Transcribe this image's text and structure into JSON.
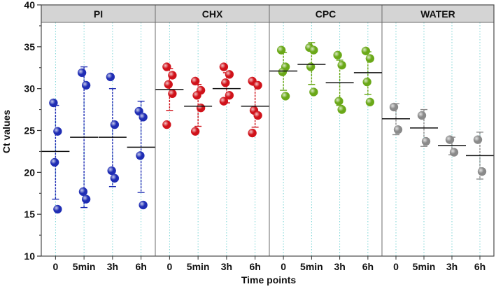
{
  "chart_data": {
    "type": "scatter",
    "ylabel": "Ct values",
    "xlabel": "Time points",
    "ylim": [
      10,
      40
    ],
    "yticks": [
      10,
      15,
      20,
      25,
      30,
      35,
      40
    ],
    "timepoints": [
      "0",
      "5min",
      "3h",
      "6h"
    ],
    "grid": "dotted vertical guides at each time point",
    "panels": [
      {
        "name": "PI",
        "color": "#1f2db4",
        "groups": [
          {
            "time": "0",
            "points": [
              28.3,
              24.9,
              21.2,
              15.6
            ],
            "mean": 22.5,
            "sd_low": 16.8,
            "sd_high": 28.0
          },
          {
            "time": "5min",
            "points": [
              31.9,
              30.4,
              17.7,
              16.8
            ],
            "mean": 24.2,
            "sd_low": 15.8,
            "sd_high": 32.6
          },
          {
            "time": "3h",
            "points": [
              31.4,
              25.7,
              20.2,
              19.3
            ],
            "mean": 24.2,
            "sd_low": 18.3,
            "sd_high": 30.0
          },
          {
            "time": "6h",
            "points": [
              27.3,
              26.6,
              22.0,
              16.1
            ],
            "mean": 23.0,
            "sd_low": 17.6,
            "sd_high": 28.5
          }
        ]
      },
      {
        "name": "CHX",
        "color": "#d0121a",
        "groups": [
          {
            "time": "0",
            "points": [
              32.6,
              31.6,
              30.5,
              29.4,
              25.7
            ],
            "mean": 29.9,
            "sd_low": 27.4,
            "sd_high": 32.4
          },
          {
            "time": "5min",
            "points": [
              30.9,
              29.8,
              29.2,
              27.7,
              24.9
            ],
            "mean": 27.9,
            "sd_low": 25.5,
            "sd_high": 30.5
          },
          {
            "time": "3h",
            "points": [
              32.6,
              31.7,
              30.7,
              29.2,
              28.5
            ],
            "mean": 30.0,
            "sd_low": 28.3,
            "sd_high": 31.9
          },
          {
            "time": "6h",
            "points": [
              30.9,
              30.4,
              27.4,
              26.8,
              24.7
            ],
            "mean": 27.9,
            "sd_low": 25.4,
            "sd_high": 30.4
          }
        ]
      },
      {
        "name": "CPC",
        "color": "#6aa818",
        "groups": [
          {
            "time": "0",
            "points": [
              34.6,
              32.6,
              32.0,
              29.1
            ],
            "mean": 32.1,
            "sd_low": 29.8,
            "sd_high": 34.3
          },
          {
            "time": "5min",
            "points": [
              34.9,
              34.6,
              32.6,
              29.6
            ],
            "mean": 32.9,
            "sd_low": 30.5,
            "sd_high": 35.5
          },
          {
            "time": "3h",
            "points": [
              34.0,
              32.8,
              28.5,
              27.5
            ],
            "mean": 30.7,
            "sd_low": 28.0,
            "sd_high": 33.4
          },
          {
            "time": "6h",
            "points": [
              34.5,
              33.6,
              30.8,
              28.4
            ],
            "mean": 31.9,
            "sd_low": 29.3,
            "sd_high": 34.4
          }
        ]
      },
      {
        "name": "WATER",
        "color": "#8a8a8a",
        "groups": [
          {
            "time": "0",
            "points": [
              27.8,
              25.1
            ],
            "mean": 26.4,
            "sd_low": 24.5,
            "sd_high": 28.2
          },
          {
            "time": "5min",
            "points": [
              26.8,
              23.7
            ],
            "mean": 25.3,
            "sd_low": 23.1,
            "sd_high": 27.5
          },
          {
            "time": "3h",
            "points": [
              23.9,
              22.4
            ],
            "mean": 23.2,
            "sd_low": 22.1,
            "sd_high": 24.2
          },
          {
            "time": "6h",
            "points": [
              23.9,
              20.1
            ],
            "mean": 22.0,
            "sd_low": 19.2,
            "sd_high": 24.8
          }
        ]
      }
    ]
  }
}
